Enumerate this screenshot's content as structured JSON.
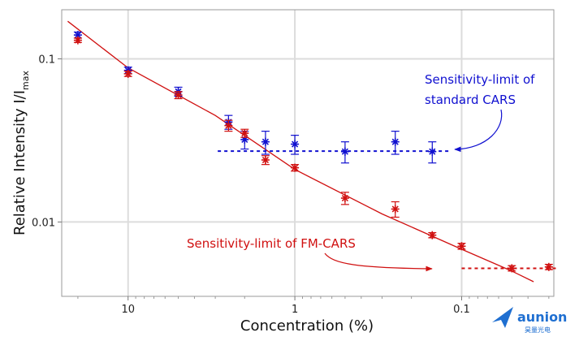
{
  "chart_data": {
    "type": "scatter",
    "xlabel": "Concentration (%)",
    "ylabel_main": "Relative Intensity I/I",
    "ylabel_sub": "max",
    "x_scale": "log",
    "x_reversed": true,
    "y_scale": "log",
    "xlim": [
      25,
      0.028
    ],
    "ylim": [
      0.0035,
      0.2
    ],
    "x_ticks": [
      {
        "value": 10,
        "label": "10"
      },
      {
        "value": 1,
        "label": "1"
      },
      {
        "value": 0.1,
        "label": "0.1"
      }
    ],
    "y_ticks": [
      {
        "value": 0.1,
        "label": "0.1"
      },
      {
        "value": 0.01,
        "label": "0.01"
      }
    ],
    "grid": true,
    "series": [
      {
        "color": "#1010d0",
        "points": [
          {
            "x": 20,
            "y": 0.14,
            "err": 0.006
          },
          {
            "x": 10,
            "y": 0.085,
            "err": 0.004
          },
          {
            "x": 5,
            "y": 0.063,
            "err": 0.004
          },
          {
            "x": 2.5,
            "y": 0.041,
            "err": 0.004
          },
          {
            "x": 2,
            "y": 0.032,
            "err": 0.004
          },
          {
            "x": 1.5,
            "y": 0.031,
            "err": 0.005
          },
          {
            "x": 1,
            "y": 0.03,
            "err": 0.004
          },
          {
            "x": 0.5,
            "y": 0.027,
            "err": 0.004
          },
          {
            "x": 0.25,
            "y": 0.031,
            "err": 0.005
          },
          {
            "x": 0.15,
            "y": 0.027,
            "err": 0.004
          }
        ]
      },
      {
        "color": "#d01010",
        "points": [
          {
            "x": 20,
            "y": 0.13,
            "err": 0.004
          },
          {
            "x": 10,
            "y": 0.081,
            "err": 0.003
          },
          {
            "x": 5,
            "y": 0.06,
            "err": 0.003
          },
          {
            "x": 2.5,
            "y": 0.039,
            "err": 0.003
          },
          {
            "x": 2,
            "y": 0.035,
            "err": 0.002
          },
          {
            "x": 1.5,
            "y": 0.024,
            "err": 0.0015
          },
          {
            "x": 1,
            "y": 0.0215,
            "err": 0.001
          },
          {
            "x": 0.5,
            "y": 0.014,
            "err": 0.0012
          },
          {
            "x": 0.25,
            "y": 0.012,
            "err": 0.0013
          },
          {
            "x": 0.15,
            "y": 0.0083,
            "err": 0.0003
          },
          {
            "x": 0.1,
            "y": 0.0071,
            "err": 0.0003
          },
          {
            "x": 0.05,
            "y": 0.0052,
            "err": 0.0002
          },
          {
            "x": 0.03,
            "y": 0.0053,
            "err": 0.0002
          }
        ]
      }
    ],
    "fit_line": {
      "color": "#d01010",
      "points": [
        [
          23,
          0.17
        ],
        [
          10,
          0.088
        ],
        [
          3,
          0.045
        ],
        [
          1,
          0.021
        ],
        [
          0.3,
          0.0112
        ],
        [
          0.1,
          0.0068
        ],
        [
          0.05,
          0.005
        ],
        [
          0.037,
          0.0043
        ]
      ]
    },
    "limit_lines": [
      {
        "color": "#1010d0",
        "y": 0.0272,
        "x_from": 2.9,
        "x_to": 0.12
      },
      {
        "color": "#d01010",
        "y": 0.0052,
        "x_from": 0.1,
        "x_to": 0.027
      }
    ],
    "annotations": [
      {
        "lines": [
          "Sensitivity-limit of",
          "standard CARS"
        ],
        "color": "#1010d0"
      },
      {
        "lines": [
          "Sensitivity-limit of FM-CARS"
        ],
        "color": "#d01010"
      }
    ]
  },
  "logo": {
    "name": "aunion",
    "sub": "昊量光电",
    "color": "#1f6fd1"
  }
}
